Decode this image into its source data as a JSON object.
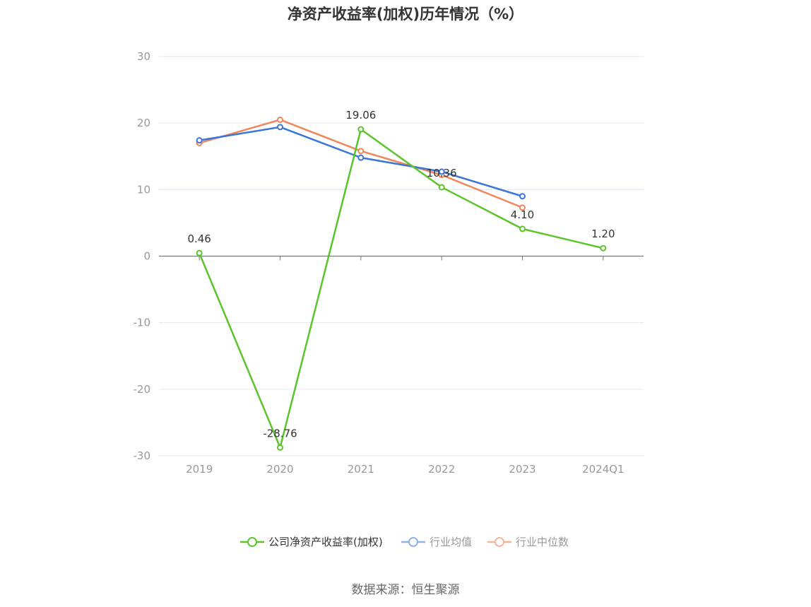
{
  "chart_data": {
    "type": "line",
    "title": "净资产收益率(加权)历年情况（%）",
    "categories": [
      "2019",
      "2020",
      "2021",
      "2022",
      "2023",
      "2024Q1"
    ],
    "ylim": [
      -30,
      30
    ],
    "yticks": [
      "30",
      "20",
      "10",
      "0",
      "-10",
      "-20",
      "-30"
    ],
    "grid": true,
    "legend_position": "bottom",
    "series": [
      {
        "name": "公司净资产收益率(加权)",
        "color": "#5cc42b",
        "values": [
          0.46,
          -28.76,
          19.06,
          10.36,
          4.1,
          1.2
        ],
        "labels": [
          "0.46",
          "-28.76",
          "19.06",
          "10.36",
          "4.10",
          "1.20"
        ]
      },
      {
        "name": "行业均值",
        "color": "#3a76d8",
        "values": [
          17.4,
          19.4,
          14.8,
          12.7,
          9.0,
          null
        ]
      },
      {
        "name": "行业中位数",
        "color": "#f0875a",
        "values": [
          17.0,
          20.5,
          15.8,
          12.2,
          7.3,
          null
        ]
      }
    ]
  },
  "legend_colors": [
    "#5cc42b",
    "#8fb2ea",
    "#f5b49a"
  ],
  "source": "数据来源：恒生聚源"
}
